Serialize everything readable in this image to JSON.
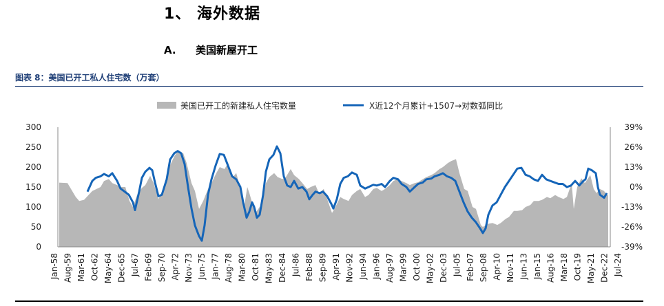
{
  "heading": {
    "section": "1、 海外数据",
    "sub_num": "A.",
    "sub_title": "美国新屋开工"
  },
  "figure_title": "图表 8：美国已开工私人住宅数（万套）",
  "chart_data": {
    "type": "area+line",
    "series": [
      {
        "name": "美国已开工的新建私人住宅数量",
        "type": "area",
        "axis": "left",
        "color": "#b7b7b7",
        "points": [
          [
            "1958-01",
            161
          ],
          [
            "1959-01",
            160
          ],
          [
            "1960-01",
            125
          ],
          [
            "1960-06",
            115
          ],
          [
            "1961-01",
            118
          ],
          [
            "1962-01",
            140
          ],
          [
            "1963-01",
            150
          ],
          [
            "1963-06",
            165
          ],
          [
            "1964-01",
            170
          ],
          [
            "1964-06",
            160
          ],
          [
            "1965-01",
            155
          ],
          [
            "1965-06",
            150
          ],
          [
            "1966-01",
            150
          ],
          [
            "1966-07",
            115
          ],
          [
            "1966-12",
            100
          ],
          [
            "1967-06",
            130
          ],
          [
            "1968-01",
            148
          ],
          [
            "1968-06",
            155
          ],
          [
            "1969-01",
            178
          ],
          [
            "1969-06",
            160
          ],
          [
            "1970-01",
            120
          ],
          [
            "1970-06",
            135
          ],
          [
            "1971-01",
            175
          ],
          [
            "1971-06",
            205
          ],
          [
            "1972-01",
            230
          ],
          [
            "1972-06",
            240
          ],
          [
            "1973-01",
            235
          ],
          [
            "1973-06",
            210
          ],
          [
            "1974-01",
            160
          ],
          [
            "1974-06",
            140
          ],
          [
            "1974-12",
            95
          ],
          [
            "1975-06",
            115
          ],
          [
            "1976-01",
            145
          ],
          [
            "1976-06",
            160
          ],
          [
            "1977-01",
            185
          ],
          [
            "1977-06",
            200
          ],
          [
            "1978-01",
            195
          ],
          [
            "1978-06",
            210
          ],
          [
            "1979-01",
            175
          ],
          [
            "1979-06",
            185
          ],
          [
            "1980-01",
            140
          ],
          [
            "1980-05",
            95
          ],
          [
            "1980-10",
            150
          ],
          [
            "1981-01",
            135
          ],
          [
            "1981-06",
            105
          ],
          [
            "1981-11",
            88
          ],
          [
            "1982-06",
            105
          ],
          [
            "1983-01",
            160
          ],
          [
            "1983-06",
            175
          ],
          [
            "1984-01",
            185
          ],
          [
            "1984-06",
            175
          ],
          [
            "1985-01",
            170
          ],
          [
            "1985-06",
            175
          ],
          [
            "1986-01",
            195
          ],
          [
            "1986-06",
            180
          ],
          [
            "1987-01",
            170
          ],
          [
            "1987-06",
            160
          ],
          [
            "1988-01",
            145
          ],
          [
            "1988-06",
            150
          ],
          [
            "1989-01",
            155
          ],
          [
            "1989-06",
            135
          ],
          [
            "1990-01",
            145
          ],
          [
            "1990-06",
            120
          ],
          [
            "1991-01",
            85
          ],
          [
            "1991-06",
            100
          ],
          [
            "1992-01",
            125
          ],
          [
            "1992-06",
            120
          ],
          [
            "1993-01",
            115
          ],
          [
            "1993-06",
            130
          ],
          [
            "1994-01",
            140
          ],
          [
            "1994-06",
            145
          ],
          [
            "1995-01",
            125
          ],
          [
            "1995-06",
            130
          ],
          [
            "1996-01",
            145
          ],
          [
            "1996-06",
            148
          ],
          [
            "1997-01",
            140
          ],
          [
            "1997-06",
            145
          ],
          [
            "1998-01",
            155
          ],
          [
            "1998-06",
            165
          ],
          [
            "1999-01",
            170
          ],
          [
            "1999-06",
            165
          ],
          [
            "2000-01",
            160
          ],
          [
            "2000-06",
            155
          ],
          [
            "2001-01",
            160
          ],
          [
            "2001-06",
            162
          ],
          [
            "2002-01",
            170
          ],
          [
            "2002-06",
            175
          ],
          [
            "2003-01",
            180
          ],
          [
            "2003-06",
            185
          ],
          [
            "2004-01",
            195
          ],
          [
            "2004-06",
            200
          ],
          [
            "2005-01",
            210
          ],
          [
            "2005-06",
            215
          ],
          [
            "2006-01",
            220
          ],
          [
            "2006-06",
            185
          ],
          [
            "2007-01",
            145
          ],
          [
            "2007-06",
            140
          ],
          [
            "2008-01",
            100
          ],
          [
            "2008-06",
            95
          ],
          [
            "2009-01",
            55
          ],
          [
            "2009-04",
            50
          ],
          [
            "2009-12",
            58
          ],
          [
            "2010-06",
            60
          ],
          [
            "2011-01",
            55
          ],
          [
            "2011-06",
            60
          ],
          [
            "2012-01",
            70
          ],
          [
            "2012-06",
            75
          ],
          [
            "2013-01",
            90
          ],
          [
            "2013-06",
            90
          ],
          [
            "2014-01",
            92
          ],
          [
            "2014-06",
            100
          ],
          [
            "2015-01",
            105
          ],
          [
            "2015-06",
            115
          ],
          [
            "2016-01",
            115
          ],
          [
            "2016-06",
            118
          ],
          [
            "2017-01",
            125
          ],
          [
            "2017-06",
            122
          ],
          [
            "2018-01",
            130
          ],
          [
            "2018-06",
            125
          ],
          [
            "2019-01",
            120
          ],
          [
            "2019-06",
            125
          ],
          [
            "2020-01",
            160
          ],
          [
            "2020-04",
            95
          ],
          [
            "2020-09",
            150
          ],
          [
            "2021-01",
            165
          ],
          [
            "2021-03",
            172
          ],
          [
            "2021-08",
            160
          ],
          [
            "2022-04",
            180
          ],
          [
            "2022-09",
            145
          ],
          [
            "2023-01",
            135
          ],
          [
            "2023-06",
            145
          ],
          [
            "2023-12",
            140
          ],
          [
            "2024-04",
            130
          ],
          [
            "2024-06",
            130
          ]
        ]
      },
      {
        "name": "X近12个月累计+1507→对数弧同比",
        "type": "line",
        "axis": "right",
        "color": "#1565b8",
        "points": [
          [
            "1961-06",
            -3
          ],
          [
            "1962-01",
            4
          ],
          [
            "1962-06",
            6
          ],
          [
            "1963-01",
            7
          ],
          [
            "1963-06",
            8.5
          ],
          [
            "1964-01",
            7
          ],
          [
            "1964-06",
            9
          ],
          [
            "1965-01",
            4
          ],
          [
            "1965-06",
            -1
          ],
          [
            "1965-12",
            -3
          ],
          [
            "1966-06",
            -5
          ],
          [
            "1966-12",
            -10
          ],
          [
            "1967-03",
            -15
          ],
          [
            "1967-09",
            -3
          ],
          [
            "1968-01",
            6
          ],
          [
            "1968-06",
            10
          ],
          [
            "1968-12",
            12.5
          ],
          [
            "1969-04",
            11
          ],
          [
            "1969-08",
            3
          ],
          [
            "1970-01",
            -6
          ],
          [
            "1970-06",
            -5
          ],
          [
            "1971-01",
            5
          ],
          [
            "1971-06",
            18
          ],
          [
            "1971-12",
            22
          ],
          [
            "1972-05",
            23.5
          ],
          [
            "1972-10",
            22
          ],
          [
            "1973-03",
            15
          ],
          [
            "1973-08",
            0
          ],
          [
            "1974-01",
            -14
          ],
          [
            "1974-06",
            -25
          ],
          [
            "1974-12",
            -32
          ],
          [
            "1975-04",
            -35
          ],
          [
            "1975-08",
            -25
          ],
          [
            "1976-01",
            -5
          ],
          [
            "1976-06",
            5
          ],
          [
            "1976-12",
            14
          ],
          [
            "1977-06",
            21.5
          ],
          [
            "1977-12",
            21
          ],
          [
            "1978-06",
            14
          ],
          [
            "1978-12",
            7
          ],
          [
            "1979-06",
            5
          ],
          [
            "1979-12",
            0
          ],
          [
            "1980-04",
            -10
          ],
          [
            "1980-09",
            -20
          ],
          [
            "1981-01",
            -16
          ],
          [
            "1981-05",
            -10
          ],
          [
            "1981-08",
            -13
          ],
          [
            "1981-12",
            -20
          ],
          [
            "1982-04",
            -18
          ],
          [
            "1982-09",
            -5
          ],
          [
            "1983-01",
            10
          ],
          [
            "1983-06",
            18
          ],
          [
            "1983-12",
            21
          ],
          [
            "1984-05",
            26.5
          ],
          [
            "1984-10",
            22
          ],
          [
            "1985-03",
            7
          ],
          [
            "1985-08",
            1
          ],
          [
            "1986-01",
            0
          ],
          [
            "1986-06",
            4
          ],
          [
            "1986-12",
            -1
          ],
          [
            "1987-06",
            0
          ],
          [
            "1987-12",
            -3
          ],
          [
            "1988-04",
            -8
          ],
          [
            "1988-09",
            -5
          ],
          [
            "1989-01",
            -3
          ],
          [
            "1989-07",
            -4
          ],
          [
            "1989-12",
            -3
          ],
          [
            "1990-06",
            -6
          ],
          [
            "1990-12",
            -11
          ],
          [
            "1991-03",
            -14
          ],
          [
            "1991-08",
            -8
          ],
          [
            "1992-01",
            2
          ],
          [
            "1992-06",
            6
          ],
          [
            "1992-12",
            7
          ],
          [
            "1993-06",
            9.5
          ],
          [
            "1994-01",
            8
          ],
          [
            "1994-06",
            1
          ],
          [
            "1995-01",
            -1
          ],
          [
            "1995-06",
            0
          ],
          [
            "1996-01",
            1.5
          ],
          [
            "1996-06",
            1
          ],
          [
            "1997-01",
            2
          ],
          [
            "1997-06",
            0
          ],
          [
            "1998-01",
            4
          ],
          [
            "1998-06",
            6
          ],
          [
            "1999-01",
            5
          ],
          [
            "1999-06",
            2
          ],
          [
            "2000-01",
            0
          ],
          [
            "2000-06",
            -3
          ],
          [
            "2001-01",
            0
          ],
          [
            "2001-06",
            2
          ],
          [
            "2002-01",
            3
          ],
          [
            "2002-06",
            5
          ],
          [
            "2003-01",
            5.5
          ],
          [
            "2003-06",
            7
          ],
          [
            "2004-01",
            8
          ],
          [
            "2004-06",
            9
          ],
          [
            "2004-12",
            7
          ],
          [
            "2005-06",
            6
          ],
          [
            "2005-12",
            4
          ],
          [
            "2006-06",
            -3
          ],
          [
            "2006-12",
            -10
          ],
          [
            "2007-06",
            -16
          ],
          [
            "2007-12",
            -20
          ],
          [
            "2008-06",
            -23
          ],
          [
            "2008-12",
            -27
          ],
          [
            "2009-04",
            -30
          ],
          [
            "2009-08",
            -27
          ],
          [
            "2009-12",
            -18
          ],
          [
            "2010-06",
            -12
          ],
          [
            "2010-12",
            -10
          ],
          [
            "2011-06",
            -5
          ],
          [
            "2011-12",
            0
          ],
          [
            "2012-06",
            4
          ],
          [
            "2012-12",
            8
          ],
          [
            "2013-06",
            12
          ],
          [
            "2013-12",
            12.5
          ],
          [
            "2014-06",
            8
          ],
          [
            "2014-12",
            7
          ],
          [
            "2015-06",
            5
          ],
          [
            "2015-12",
            4
          ],
          [
            "2016-06",
            8
          ],
          [
            "2016-12",
            5
          ],
          [
            "2017-06",
            4
          ],
          [
            "2017-12",
            3
          ],
          [
            "2018-06",
            2
          ],
          [
            "2018-12",
            2
          ],
          [
            "2019-06",
            0
          ],
          [
            "2019-12",
            1
          ],
          [
            "2020-06",
            4
          ],
          [
            "2020-12",
            1
          ],
          [
            "2021-06",
            4
          ],
          [
            "2021-09",
            5
          ],
          [
            "2022-01",
            12
          ],
          [
            "2022-06",
            11
          ],
          [
            "2022-12",
            9
          ],
          [
            "2023-03",
            0
          ],
          [
            "2023-06",
            -5
          ],
          [
            "2023-12",
            -7
          ],
          [
            "2024-04",
            -4
          ]
        ]
      }
    ],
    "y_left": {
      "min": 0,
      "max": 300,
      "ticks": [
        "0",
        "50",
        "100",
        "150",
        "200",
        "250",
        "300"
      ]
    },
    "y_right": {
      "min": -39,
      "max": 39,
      "ticks": [
        "-39%",
        "-26%",
        "-13%",
        "0%",
        "13%",
        "26%",
        "39%"
      ]
    },
    "x_range": [
      "1958-01",
      "2024-07"
    ],
    "x_ticks": [
      "Jan-58",
      "Aug-59",
      "Mar-61",
      "Oct-62",
      "May-64",
      "Dec-65",
      "Jul-67",
      "Feb-69",
      "Sep-70",
      "Apr-72",
      "Nov-73",
      "Jun-75",
      "Jan-77",
      "Aug-78",
      "Mar-80",
      "Oct-81",
      "May-83",
      "Dec-84",
      "Jul-86",
      "Feb-88",
      "Sep-89",
      "Apr-91",
      "Nov-92",
      "Jun-94",
      "Jan-96",
      "Aug-97",
      "Mar-99",
      "Oct-00",
      "May-02",
      "Dec-03",
      "Jul-05",
      "Feb-07",
      "Sep-08",
      "Apr-10",
      "Nov-11",
      "Jun-13",
      "Jan-15",
      "Aug-16",
      "Mar-18",
      "Oct-19",
      "May-21",
      "Dec-22",
      "Jul-24"
    ],
    "legend_position": "top-center",
    "grid": false
  }
}
